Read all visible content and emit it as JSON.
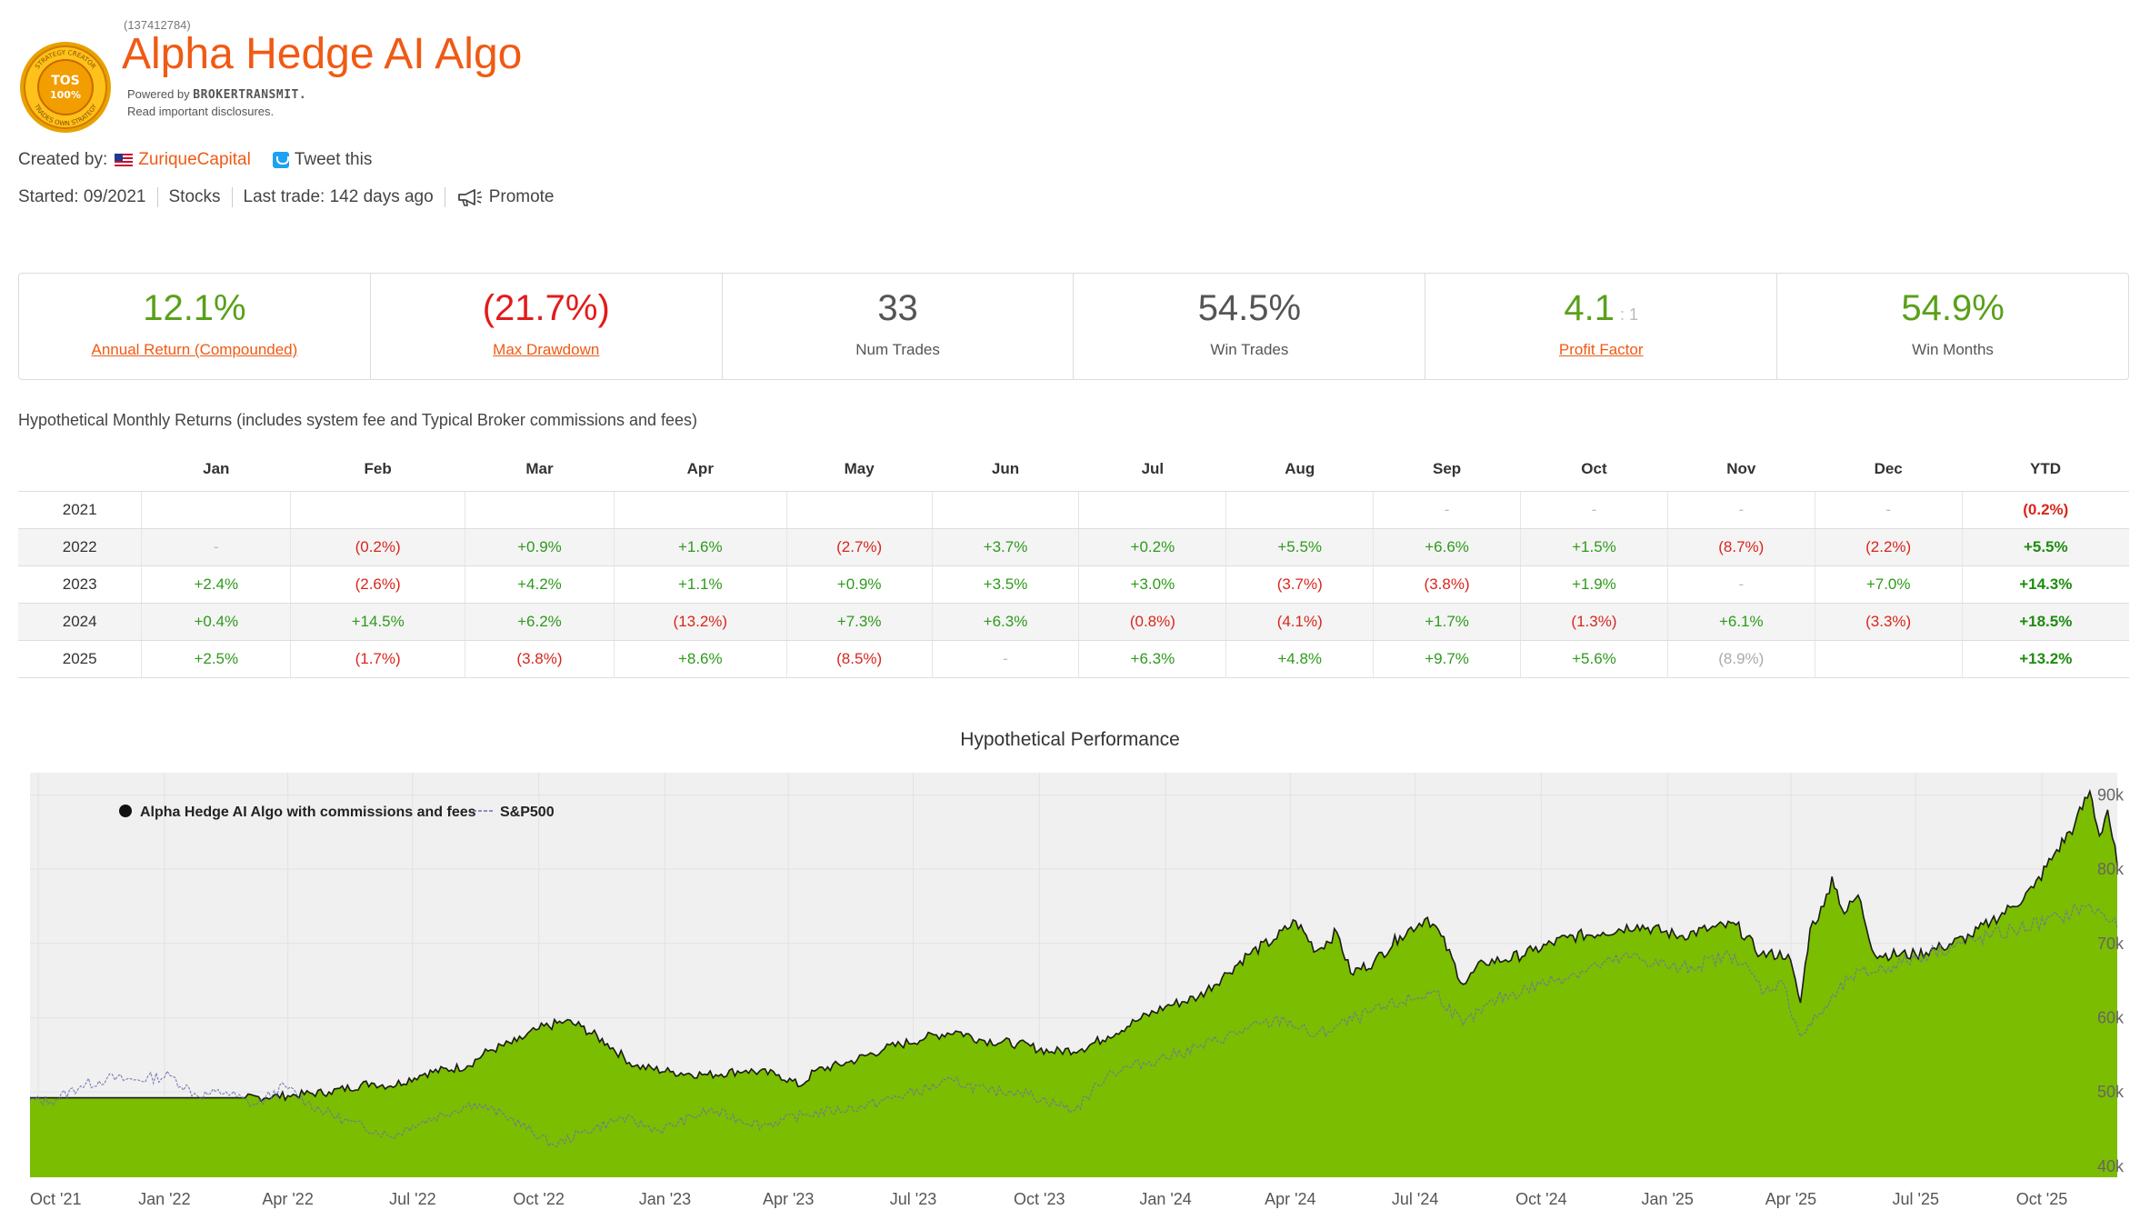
{
  "header": {
    "strategy_id": "(137412784)",
    "title": "Alpha Hedge AI Algo",
    "powered_prefix": "Powered by",
    "powered_brand": "BROKERTRANSMIT.",
    "disclosures": "Read important disclosures.",
    "seal_text_top": "STRATEGY CREATOR",
    "seal_text_bottom": "TRADES OWN STRATEGY",
    "seal_mark": "TOS",
    "seal_pct": "100%"
  },
  "meta": {
    "created_by_label": "Created by:",
    "creator": "ZuriqueCapital",
    "tweet": "Tweet this",
    "started": "Started: 09/2021",
    "asset": "Stocks",
    "last_trade": "Last trade: 142 days ago",
    "promote": "Promote"
  },
  "stats": [
    {
      "value": "12.1%",
      "label": "Annual Return (Compounded)",
      "color": "#5aa01a",
      "link": true
    },
    {
      "value": "(21.7%)",
      "label": "Max Drawdown",
      "color": "#e41a1a",
      "link": true
    },
    {
      "value": "33",
      "label": "Num Trades",
      "color": "#555555",
      "link": false
    },
    {
      "value": "54.5%",
      "label": "Win Trades",
      "color": "#555555",
      "link": false
    },
    {
      "value": "4.1",
      "suffix": ": 1",
      "label": "Profit Factor",
      "color": "#5aa01a",
      "link": true
    },
    {
      "value": "54.9%",
      "label": "Win Months",
      "color": "#5aa01a",
      "link": false
    }
  ],
  "returns": {
    "caption": "Hypothetical Monthly Returns (includes system fee and Typical Broker commissions and fees)",
    "columns": [
      "",
      "Jan",
      "Feb",
      "Mar",
      "Apr",
      "May",
      "Jun",
      "Jul",
      "Aug",
      "Sep",
      "Oct",
      "Nov",
      "Dec",
      "YTD"
    ],
    "rows": [
      {
        "year": "2021",
        "cells": [
          "",
          "",
          "",
          "",
          "",
          "",
          "",
          "",
          "-",
          "-",
          "-",
          "-"
        ],
        "ytd": "(0.2%)"
      },
      {
        "year": "2022",
        "cells": [
          "-",
          "(0.2%)",
          "+0.9%",
          "+1.6%",
          "(2.7%)",
          "+3.7%",
          "+0.2%",
          "+5.5%",
          "+6.6%",
          "+1.5%",
          "(8.7%)",
          "(2.2%)"
        ],
        "ytd": "+5.5%"
      },
      {
        "year": "2023",
        "cells": [
          "+2.4%",
          "(2.6%)",
          "+4.2%",
          "+1.1%",
          "+0.9%",
          "+3.5%",
          "+3.0%",
          "(3.7%)",
          "(3.8%)",
          "+1.9%",
          "-",
          "+7.0%"
        ],
        "ytd": "+14.3%"
      },
      {
        "year": "2024",
        "cells": [
          "+0.4%",
          "+14.5%",
          "+6.2%",
          "(13.2%)",
          "+7.3%",
          "+6.3%",
          "(0.8%)",
          "(4.1%)",
          "+1.7%",
          "(1.3%)",
          "+6.1%",
          "(3.3%)"
        ],
        "ytd": "+18.5%"
      },
      {
        "year": "2025",
        "cells": [
          "+2.5%",
          "(1.7%)",
          "(3.8%)",
          "+8.6%",
          "(8.5%)",
          "-",
          "+6.3%",
          "+4.8%",
          "+9.7%",
          "+5.6%",
          "(8.9%)",
          ""
        ],
        "ytd": "+13.2%",
        "partial_index": 10
      }
    ]
  },
  "performance": {
    "title": "Hypothetical Performance"
  },
  "chart_data": {
    "type": "area",
    "title": "Hypothetical Performance",
    "x_ticks": [
      "Oct '21",
      "Jan '22",
      "Apr '22",
      "Jul '22",
      "Oct '22",
      "Jan '23",
      "Apr '23",
      "Jul '23",
      "Oct '23",
      "Jan '24",
      "Apr '24",
      "Jul '24",
      "Oct '24",
      "Jan '25",
      "Apr '25",
      "Jul '25",
      "Oct '25"
    ],
    "y_ticks": [
      "40k",
      "50k",
      "60k",
      "70k",
      "80k",
      "90k"
    ],
    "y_tick_values": [
      40000,
      50000,
      60000,
      70000,
      80000,
      90000
    ],
    "ylim": [
      38500,
      93000
    ],
    "x_range": [
      "2021-09-25",
      "2025-11-25"
    ],
    "legend_position": "top-left",
    "grid": true,
    "series": [
      {
        "name": "Alpha Hedge AI Algo with commissions and fees",
        "style": "area",
        "color": "#7bbd00",
        "points": [
          [
            "2021-09-25",
            49200
          ],
          [
            "2021-10-15",
            49200
          ],
          [
            "2021-12-01",
            49200
          ],
          [
            "2022-01-15",
            49200
          ],
          [
            "2022-03-01",
            49200
          ],
          [
            "2022-04-01",
            49500
          ],
          [
            "2022-05-01",
            50000
          ],
          [
            "2022-06-01",
            51200
          ],
          [
            "2022-06-15",
            50800
          ],
          [
            "2022-07-10",
            52500
          ],
          [
            "2022-08-10",
            53500
          ],
          [
            "2022-08-25",
            55500
          ],
          [
            "2022-09-15",
            56800
          ],
          [
            "2022-10-01",
            58500
          ],
          [
            "2022-10-20",
            59500
          ],
          [
            "2022-11-01",
            58800
          ],
          [
            "2022-11-20",
            56500
          ],
          [
            "2022-12-10",
            53500
          ],
          [
            "2023-01-05",
            52700
          ],
          [
            "2023-02-01",
            52300
          ],
          [
            "2023-03-01",
            52900
          ],
          [
            "2023-03-25",
            52300
          ],
          [
            "2023-04-10",
            50800
          ],
          [
            "2023-04-20",
            52800
          ],
          [
            "2023-05-15",
            54000
          ],
          [
            "2023-06-10",
            55800
          ],
          [
            "2023-07-10",
            57300
          ],
          [
            "2023-08-01",
            58200
          ],
          [
            "2023-08-20",
            57000
          ],
          [
            "2023-09-15",
            56500
          ],
          [
            "2023-10-10",
            55400
          ],
          [
            "2023-11-01",
            55800
          ],
          [
            "2023-11-20",
            57500
          ],
          [
            "2023-12-10",
            59500
          ],
          [
            "2024-01-01",
            61500
          ],
          [
            "2024-01-25",
            62800
          ],
          [
            "2024-02-15",
            66000
          ],
          [
            "2024-03-01",
            68500
          ],
          [
            "2024-03-20",
            70500
          ],
          [
            "2024-04-05",
            73000
          ],
          [
            "2024-04-20",
            69000
          ],
          [
            "2024-05-05",
            71500
          ],
          [
            "2024-05-15",
            66000
          ],
          [
            "2024-06-01",
            67500
          ],
          [
            "2024-06-20",
            71000
          ],
          [
            "2024-07-10",
            73500
          ],
          [
            "2024-07-20",
            71000
          ],
          [
            "2024-08-05",
            64500
          ],
          [
            "2024-08-20",
            67500
          ],
          [
            "2024-09-05",
            67800
          ],
          [
            "2024-09-25",
            69000
          ],
          [
            "2024-10-20",
            70800
          ],
          [
            "2024-11-15",
            71500
          ],
          [
            "2024-12-10",
            72500
          ],
          [
            "2025-01-10",
            71000
          ],
          [
            "2025-02-01",
            72000
          ],
          [
            "2025-02-20",
            72500
          ],
          [
            "2025-03-10",
            68500
          ],
          [
            "2025-03-30",
            68500
          ],
          [
            "2025-04-08",
            62000
          ],
          [
            "2025-04-15",
            72000
          ],
          [
            "2025-04-25",
            75000
          ],
          [
            "2025-05-01",
            79000
          ],
          [
            "2025-05-10",
            74000
          ],
          [
            "2025-05-20",
            76500
          ],
          [
            "2025-06-01",
            68500
          ],
          [
            "2025-07-01",
            68500
          ],
          [
            "2025-07-20",
            69500
          ],
          [
            "2025-08-10",
            71000
          ],
          [
            "2025-08-25",
            73000
          ],
          [
            "2025-09-10",
            75000
          ],
          [
            "2025-09-25",
            77500
          ],
          [
            "2025-10-10",
            82000
          ],
          [
            "2025-10-25",
            86000
          ],
          [
            "2025-11-05",
            90500
          ],
          [
            "2025-11-12",
            84500
          ],
          [
            "2025-11-18",
            88000
          ],
          [
            "2025-11-25",
            80500
          ]
        ]
      },
      {
        "name": "S&P500",
        "style": "dashed-line",
        "color": "#6a6fb0",
        "points": [
          [
            "2021-09-25",
            48900
          ],
          [
            "2021-10-10",
            48700
          ],
          [
            "2021-11-01",
            50800
          ],
          [
            "2021-11-20",
            51800
          ],
          [
            "2021-12-10",
            51600
          ],
          [
            "2022-01-05",
            52200
          ],
          [
            "2022-01-25",
            49500
          ],
          [
            "2022-02-15",
            50000
          ],
          [
            "2022-03-08",
            48200
          ],
          [
            "2022-03-30",
            50800
          ],
          [
            "2022-04-15",
            48500
          ],
          [
            "2022-05-12",
            46200
          ],
          [
            "2022-06-16",
            44000
          ],
          [
            "2022-07-01",
            45500
          ],
          [
            "2022-08-15",
            48500
          ],
          [
            "2022-09-10",
            46500
          ],
          [
            "2022-10-12",
            42800
          ],
          [
            "2022-11-01",
            44500
          ],
          [
            "2022-12-01",
            46500
          ],
          [
            "2022-12-28",
            44800
          ],
          [
            "2023-02-02",
            47500
          ],
          [
            "2023-03-13",
            45500
          ],
          [
            "2023-04-15",
            47000
          ],
          [
            "2023-05-25",
            48000
          ],
          [
            "2023-07-31",
            51500
          ],
          [
            "2023-08-25",
            50000
          ],
          [
            "2023-09-15",
            50200
          ],
          [
            "2023-10-27",
            47500
          ],
          [
            "2023-11-20",
            52500
          ],
          [
            "2023-12-28",
            54500
          ],
          [
            "2024-01-25",
            56000
          ],
          [
            "2024-03-01",
            58500
          ],
          [
            "2024-03-28",
            59800
          ],
          [
            "2024-04-19",
            57500
          ],
          [
            "2024-05-20",
            60000
          ],
          [
            "2024-06-20",
            62000
          ],
          [
            "2024-07-16",
            63500
          ],
          [
            "2024-08-05",
            59000
          ],
          [
            "2024-08-30",
            62500
          ],
          [
            "2024-09-30",
            64500
          ],
          [
            "2024-11-11",
            67000
          ],
          [
            "2024-12-06",
            68200
          ],
          [
            "2025-01-10",
            66500
          ],
          [
            "2025-02-19",
            68500
          ],
          [
            "2025-03-13",
            63500
          ],
          [
            "2025-03-25",
            65000
          ],
          [
            "2025-04-08",
            57500
          ],
          [
            "2025-04-20",
            60000
          ],
          [
            "2025-05-15",
            65500
          ],
          [
            "2025-06-15",
            67000
          ],
          [
            "2025-07-15",
            69000
          ],
          [
            "2025-08-15",
            70500
          ],
          [
            "2025-09-15",
            72000
          ],
          [
            "2025-10-15",
            73500
          ],
          [
            "2025-11-01",
            75000
          ],
          [
            "2025-11-15",
            74000
          ],
          [
            "2025-11-25",
            72000
          ]
        ]
      }
    ]
  }
}
